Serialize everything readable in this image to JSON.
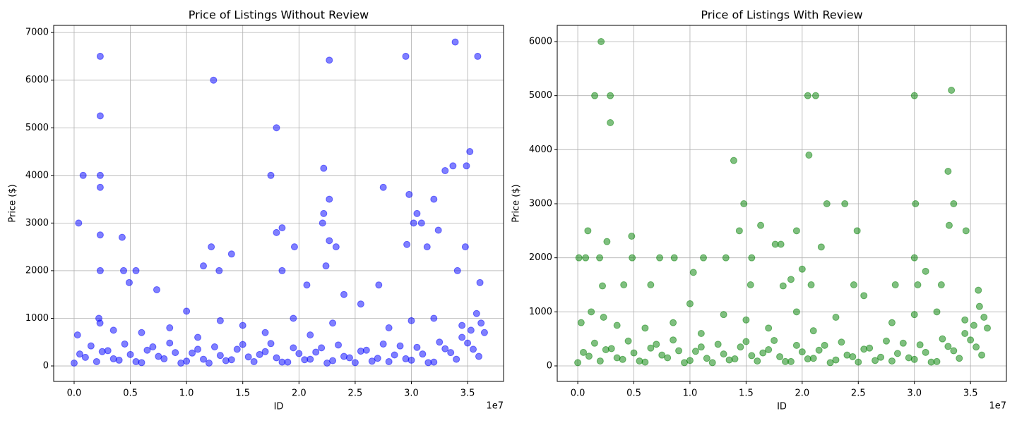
{
  "chart_data": [
    {
      "type": "scatter",
      "title": "Price of Listings Without Review",
      "x_label": "ID",
      "y_label": "Price ($)",
      "x_offset_label": "1e7",
      "color": "#0000ff",
      "alpha": 0.5,
      "grid": true,
      "xlim": [
        -1820000,
        38200000
      ],
      "ylim": [
        -325,
        7150
      ],
      "xticks": [
        {
          "value": 0,
          "label": "0.0"
        },
        {
          "value": 5000000,
          "label": "0.5"
        },
        {
          "value": 10000000,
          "label": "1.0"
        },
        {
          "value": 15000000,
          "label": "1.5"
        },
        {
          "value": 20000000,
          "label": "2.0"
        },
        {
          "value": 25000000,
          "label": "2.5"
        },
        {
          "value": 30000000,
          "label": "3.0"
        },
        {
          "value": 35000000,
          "label": "3.5"
        }
      ],
      "yticks": [
        0,
        1000,
        2000,
        3000,
        4000,
        5000,
        6000,
        7000
      ],
      "x": [
        2320000,
        2320000,
        2320000,
        2320000,
        12400000,
        22700000,
        29500000,
        33900000,
        35900000,
        18000000,
        800000,
        17500000,
        22200000,
        35200000,
        33700000,
        34900000,
        33000000,
        27500000,
        29800000,
        400000,
        22200000,
        22700000,
        32000000,
        30500000,
        30200000,
        30900000,
        22100000,
        18500000,
        18000000,
        2320000,
        4270000,
        32400000,
        14000000,
        12200000,
        19600000,
        23300000,
        29600000,
        31400000,
        22700000,
        11500000,
        12900000,
        5500000,
        4400000,
        34800000,
        4900000,
        2320000,
        18500000,
        22400000,
        34100000,
        36100000,
        7350000,
        20700000,
        24000000,
        27100000,
        0,
        1000000,
        2000000,
        3000000,
        4000000,
        5000000,
        6000000,
        7000000,
        8000000,
        9000000,
        10000000,
        11000000,
        12000000,
        13000000,
        14000000,
        15000000,
        16000000,
        17000000,
        18000000,
        19000000,
        20000000,
        21000000,
        22000000,
        23000000,
        24000000,
        25000000,
        26000000,
        27000000,
        28000000,
        29000000,
        30000000,
        31000000,
        32000000,
        33000000,
        34000000,
        35000000,
        36000000,
        500000,
        1500000,
        2500000,
        3500000,
        4500000,
        5500000,
        6500000,
        7500000,
        8500000,
        9500000,
        10500000,
        11500000,
        12500000,
        13500000,
        14500000,
        15500000,
        16500000,
        17500000,
        18500000,
        19500000,
        20500000,
        21500000,
        22500000,
        23500000,
        24500000,
        25500000,
        26500000,
        27500000,
        28500000,
        29500000,
        30500000,
        31500000,
        32500000,
        33500000,
        34500000,
        35500000,
        36500000,
        300000,
        2200000,
        2300000,
        3500000,
        6000000,
        8500000,
        10000000,
        11000000,
        13000000,
        15000000,
        17000000,
        19500000,
        21000000,
        23000000,
        25500000,
        28000000,
        30000000,
        32000000,
        34500000,
        35800000,
        36200000,
        35300000
      ],
      "values": [
        6500,
        5250,
        4000,
        3750,
        6000,
        6420,
        6500,
        6800,
        6500,
        5000,
        4000,
        4000,
        4150,
        4500,
        4200,
        4200,
        4100,
        3750,
        3600,
        3000,
        3200,
        3500,
        3500,
        3200,
        3000,
        3000,
        3000,
        2900,
        2800,
        2750,
        2700,
        2850,
        2350,
        2500,
        2500,
        2500,
        2550,
        2500,
        2630,
        2100,
        2000,
        2000,
        2000,
        2500,
        1750,
        2000,
        2000,
        2100,
        2000,
        1750,
        1600,
        1700,
        1500,
        1700,
        60,
        180,
        90,
        320,
        120,
        240,
        70,
        400,
        150,
        280,
        100,
        350,
        60,
        220,
        130,
        450,
        90,
        300,
        170,
        80,
        260,
        140,
        380,
        110,
        200,
        70,
        330,
        160,
        90,
        420,
        120,
        250,
        80,
        360,
        140,
        480,
        200,
        250,
        420,
        300,
        150,
        460,
        90,
        330,
        200,
        480,
        60,
        270,
        140,
        400,
        110,
        350,
        190,
        240,
        470,
        80,
        380,
        130,
        290,
        60,
        440,
        170,
        310,
        100,
        460,
        230,
        150,
        390,
        70,
        500,
        280,
        600,
        350,
        700,
        650,
        1000,
        900,
        750,
        700,
        800,
        1150,
        600,
        950,
        850,
        700,
        1000,
        650,
        900,
        1300,
        800,
        950,
        1000,
        850,
        1100,
        900,
        750
      ]
    },
    {
      "type": "scatter",
      "title": "Price of Listings With Review",
      "x_label": "ID",
      "y_label": "Price ($)",
      "x_offset_label": "1e7",
      "color": "#008000",
      "alpha": 0.5,
      "grid": true,
      "xlim": [
        -1830000,
        38200000
      ],
      "ylim": [
        -287,
        6300
      ],
      "xticks": [
        {
          "value": 0,
          "label": "0.0"
        },
        {
          "value": 5000000,
          "label": "0.5"
        },
        {
          "value": 10000000,
          "label": "1.0"
        },
        {
          "value": 15000000,
          "label": "1.5"
        },
        {
          "value": 20000000,
          "label": "2.0"
        },
        {
          "value": 25000000,
          "label": "2.5"
        },
        {
          "value": 30000000,
          "label": "3.0"
        },
        {
          "value": 35000000,
          "label": "3.5"
        }
      ],
      "yticks": [
        0,
        1000,
        2000,
        3000,
        4000,
        5000,
        6000
      ],
      "x": [
        2080000,
        1510000,
        2900000,
        2900000,
        20500000,
        21200000,
        30000000,
        33300000,
        20600000,
        13900000,
        33000000,
        14800000,
        22200000,
        23800000,
        30100000,
        33500000,
        16300000,
        33100000,
        14400000,
        19500000,
        24900000,
        34600000,
        900000,
        2600000,
        17600000,
        18100000,
        21700000,
        4800000,
        100000,
        700000,
        1950000,
        4850000,
        7300000,
        8600000,
        11200000,
        13200000,
        15500000,
        30000000,
        20000000,
        10300000,
        31000000,
        35700000,
        2200000,
        4100000,
        18300000,
        19000000,
        30300000,
        32400000,
        6500000,
        15400000,
        20800000,
        24600000,
        28300000,
        0,
        1000000,
        2000000,
        3000000,
        4000000,
        5000000,
        6000000,
        7000000,
        8000000,
        9000000,
        10000000,
        11000000,
        12000000,
        13000000,
        14000000,
        15000000,
        16000000,
        17000000,
        18000000,
        19000000,
        20000000,
        21000000,
        22000000,
        23000000,
        24000000,
        25000000,
        26000000,
        27000000,
        28000000,
        29000000,
        30000000,
        31000000,
        32000000,
        33000000,
        34000000,
        35000000,
        36000000,
        500000,
        1500000,
        2500000,
        3500000,
        4500000,
        5500000,
        6500000,
        7500000,
        8500000,
        9500000,
        10500000,
        11500000,
        12500000,
        13500000,
        14500000,
        15500000,
        16500000,
        17500000,
        18500000,
        19500000,
        20500000,
        21500000,
        22500000,
        23500000,
        24500000,
        25500000,
        26500000,
        27500000,
        28500000,
        29500000,
        30500000,
        31500000,
        32500000,
        33500000,
        34500000,
        35500000,
        36500000,
        300000,
        1200000,
        2300000,
        3500000,
        6000000,
        8500000,
        10000000,
        11000000,
        13000000,
        15000000,
        17000000,
        19500000,
        21000000,
        23000000,
        25500000,
        28000000,
        30000000,
        32000000,
        34500000,
        35800000,
        36200000,
        35300000
      ],
      "values": [
        6000,
        5000,
        5000,
        4500,
        5000,
        5000,
        5000,
        5100,
        3900,
        3800,
        3600,
        3000,
        3000,
        3000,
        3000,
        3000,
        2600,
        2600,
        2500,
        2500,
        2500,
        2500,
        2500,
        2300,
        2250,
        2250,
        2200,
        2400,
        2000,
        2000,
        2000,
        2000,
        2000,
        2000,
        2000,
        2000,
        2000,
        2000,
        1790,
        1730,
        1750,
        1400,
        1480,
        1500,
        1480,
        1600,
        1500,
        1500,
        1500,
        1500,
        1500,
        1500,
        1500,
        60,
        180,
        90,
        320,
        120,
        240,
        70,
        400,
        150,
        280,
        100,
        350,
        60,
        220,
        130,
        450,
        90,
        300,
        170,
        80,
        260,
        140,
        380,
        110,
        200,
        70,
        330,
        160,
        90,
        420,
        120,
        250,
        80,
        360,
        140,
        480,
        200,
        250,
        420,
        300,
        150,
        460,
        90,
        330,
        200,
        480,
        60,
        270,
        140,
        400,
        110,
        350,
        190,
        240,
        470,
        80,
        380,
        130,
        290,
        60,
        440,
        170,
        310,
        100,
        460,
        230,
        150,
        390,
        70,
        500,
        280,
        600,
        350,
        700,
        800,
        1000,
        900,
        750,
        700,
        800,
        1150,
        600,
        950,
        850,
        700,
        1000,
        650,
        900,
        1300,
        800,
        950,
        1000,
        850,
        1100,
        900,
        750
      ]
    }
  ]
}
